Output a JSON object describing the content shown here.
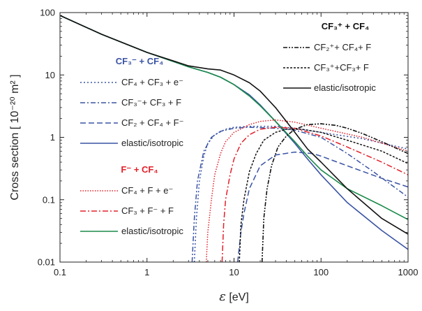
{
  "chart_data": {
    "type": "line",
    "x_scale": "log",
    "y_scale": "log",
    "xlim": [
      0.1,
      1000
    ],
    "ylim": [
      0.01,
      100
    ],
    "xlabel": "ε [eV]",
    "ylabel": "Cross section [ 10⁻²⁰ m² ]",
    "x_ticks": [
      "0.1",
      "1",
      "10",
      "100",
      "1000"
    ],
    "y_ticks": [
      "0.01",
      "0.1",
      "1",
      "10",
      "100"
    ],
    "legends": [
      {
        "title": "CF₃⁻ + CF₄",
        "title_color": "#3a53a4",
        "entries": [
          {
            "label": "CF₄ + CF₃ + e⁻",
            "color": "#3a53a4",
            "dash": "2,3"
          },
          {
            "label": "CF₃⁻+ CF₃ + F",
            "color": "#3a53a4",
            "dash": "7,3,2,3"
          },
          {
            "label": "CF₂ + CF₄ + F⁻",
            "color": "#3a53a4",
            "dash": "8,4"
          },
          {
            "label": "elastic/isotropic",
            "color": "#3a53a4",
            "dash": ""
          }
        ]
      },
      {
        "title": "F⁻ + CF₄",
        "title_color": "#e3202a",
        "entries": [
          {
            "label": "CF₄ + F + e⁻",
            "color": "#e3202a",
            "dash": "1.5,2"
          },
          {
            "label": "CF₃ + F⁻ + F",
            "color": "#e3202a",
            "dash": "8,3,2,3"
          },
          {
            "label": "elastic/isotropic",
            "color": "#1a8a4a",
            "dash": ""
          }
        ]
      },
      {
        "title": "CF₃⁺ + CF₄",
        "title_color": "#111111",
        "entries": [
          {
            "label": "CF₂⁺+ CF₄+ F",
            "color": "#111111",
            "dash": "6,2,2,2,2,2"
          },
          {
            "label": "CF₃⁺+CF₃+ F",
            "color": "#111111",
            "dash": "3,2"
          },
          {
            "label": "elastic/isotropic",
            "color": "#111111",
            "dash": ""
          }
        ]
      }
    ],
    "series": [
      {
        "name": "elastic/isotropic",
        "group": "CF₃⁻ + CF₄",
        "color": "#3a53a4",
        "dash": "",
        "width": 1.6,
        "points": [
          [
            0.1,
            90
          ],
          [
            0.3,
            45
          ],
          [
            1,
            23
          ],
          [
            3,
            13.5
          ],
          [
            5,
            11
          ],
          [
            7,
            9.2
          ],
          [
            10,
            7
          ],
          [
            15,
            4.8
          ],
          [
            20,
            3.3
          ],
          [
            30,
            1.8
          ],
          [
            50,
            0.8
          ],
          [
            70,
            0.45
          ],
          [
            100,
            0.25
          ],
          [
            200,
            0.09
          ],
          [
            500,
            0.032
          ],
          [
            1000,
            0.016
          ]
        ]
      },
      {
        "name": "CF₄ + CF₃ + e⁻",
        "group": "CF₃⁻ + CF₄",
        "color": "#3a53a4",
        "dash": "2,3",
        "width": 1.5,
        "points": [
          [
            3.5,
            0.01
          ],
          [
            3.7,
            0.05
          ],
          [
            4,
            0.2
          ],
          [
            4.5,
            0.5
          ],
          [
            5,
            0.8
          ],
          [
            6,
            1.1
          ],
          [
            8,
            1.35
          ],
          [
            10,
            1.45
          ],
          [
            15,
            1.5
          ],
          [
            30,
            1.5
          ],
          [
            50,
            1.4
          ],
          [
            100,
            1.2
          ],
          [
            300,
            0.95
          ],
          [
            1000,
            0.65
          ]
        ]
      },
      {
        "name": "CF₃⁻+ CF₃ + F",
        "group": "CF₃⁻ + CF₄",
        "color": "#3a53a4",
        "dash": "7,3,2,3",
        "width": 1.5,
        "points": [
          [
            3.3,
            0.01
          ],
          [
            3.5,
            0.05
          ],
          [
            3.8,
            0.2
          ],
          [
            4.5,
            0.6
          ],
          [
            5.5,
            1
          ],
          [
            7,
            1.25
          ],
          [
            10,
            1.4
          ],
          [
            15,
            1.45
          ],
          [
            30,
            1.4
          ],
          [
            50,
            1.3
          ],
          [
            100,
            1
          ],
          [
            200,
            0.55
          ],
          [
            400,
            0.28
          ],
          [
            1000,
            0.11
          ]
        ]
      },
      {
        "name": "CF₂ + CF₄ + F⁻",
        "group": "CF₃⁻ + CF₄",
        "color": "#3a53a4",
        "dash": "8,4",
        "width": 1.5,
        "points": [
          [
            11,
            0.01
          ],
          [
            12,
            0.03
          ],
          [
            13,
            0.06
          ],
          [
            15,
            0.15
          ],
          [
            20,
            0.35
          ],
          [
            30,
            0.52
          ],
          [
            50,
            0.58
          ],
          [
            80,
            0.55
          ],
          [
            100,
            0.5
          ],
          [
            200,
            0.35
          ],
          [
            500,
            0.22
          ],
          [
            1000,
            0.16
          ]
        ]
      },
      {
        "name": "elastic/isotropic",
        "group": "F⁻ + CF₄",
        "color": "#1a8a4a",
        "dash": "",
        "width": 1.6,
        "points": [
          [
            0.1,
            90
          ],
          [
            0.3,
            45
          ],
          [
            1,
            23
          ],
          [
            3,
            13.5
          ],
          [
            5,
            11
          ],
          [
            7,
            9.2
          ],
          [
            10,
            7
          ],
          [
            15,
            4.6
          ],
          [
            20,
            3.2
          ],
          [
            30,
            1.8
          ],
          [
            50,
            0.85
          ],
          [
            70,
            0.5
          ],
          [
            100,
            0.3
          ],
          [
            200,
            0.15
          ],
          [
            500,
            0.08
          ],
          [
            1000,
            0.048
          ]
        ]
      },
      {
        "name": "CF₄ + F + e⁻",
        "group": "F⁻ + CF₄",
        "color": "#e3202a",
        "dash": "1.5,2",
        "width": 1.5,
        "points": [
          [
            4.8,
            0.01
          ],
          [
            5,
            0.03
          ],
          [
            5.5,
            0.1
          ],
          [
            6,
            0.25
          ],
          [
            7,
            0.55
          ],
          [
            8,
            0.85
          ],
          [
            10,
            1.2
          ],
          [
            15,
            1.6
          ],
          [
            20,
            1.8
          ],
          [
            30,
            1.9
          ],
          [
            50,
            1.75
          ],
          [
            100,
            1.4
          ],
          [
            300,
            1
          ],
          [
            1000,
            0.6
          ]
        ]
      },
      {
        "name": "CF₃ + F⁻ + F",
        "group": "F⁻ + CF₄",
        "color": "#e3202a",
        "dash": "8,3,2,3",
        "width": 1.5,
        "points": [
          [
            7.3,
            0.01
          ],
          [
            7.6,
            0.04
          ],
          [
            8,
            0.1
          ],
          [
            9,
            0.25
          ],
          [
            10,
            0.45
          ],
          [
            12,
            0.8
          ],
          [
            15,
            1.1
          ],
          [
            20,
            1.35
          ],
          [
            30,
            1.45
          ],
          [
            50,
            1.4
          ],
          [
            100,
            1.05
          ],
          [
            200,
            0.7
          ],
          [
            500,
            0.4
          ],
          [
            1000,
            0.25
          ]
        ]
      },
      {
        "name": "elastic/isotropic",
        "group": "CF₃⁺ + CF₄",
        "color": "#111111",
        "dash": "",
        "width": 1.6,
        "points": [
          [
            0.1,
            90
          ],
          [
            0.3,
            45
          ],
          [
            1,
            23
          ],
          [
            3,
            14
          ],
          [
            5,
            12.5
          ],
          [
            7,
            12
          ],
          [
            10,
            10
          ],
          [
            15,
            7.5
          ],
          [
            20,
            5.5
          ],
          [
            30,
            3
          ],
          [
            50,
            1.2
          ],
          [
            70,
            0.65
          ],
          [
            100,
            0.4
          ],
          [
            200,
            0.15
          ],
          [
            500,
            0.05
          ],
          [
            1000,
            0.028
          ]
        ]
      },
      {
        "name": "CF₂⁺+ CF₄+ F",
        "group": "CF₃⁺ + CF₄",
        "color": "#111111",
        "dash": "6,2,2,2,2,2",
        "width": 1.6,
        "points": [
          [
            21,
            0.01
          ],
          [
            22,
            0.05
          ],
          [
            24,
            0.15
          ],
          [
            27,
            0.35
          ],
          [
            32,
            0.7
          ],
          [
            40,
            1.05
          ],
          [
            50,
            1.35
          ],
          [
            70,
            1.6
          ],
          [
            100,
            1.65
          ],
          [
            150,
            1.55
          ],
          [
            200,
            1.4
          ],
          [
            300,
            1.15
          ],
          [
            500,
            0.85
          ],
          [
            1000,
            0.55
          ]
        ]
      },
      {
        "name": "CF₃⁺+CF₃+ F",
        "group": "CF₃⁺ + CF₄",
        "color": "#111111",
        "dash": "3,2",
        "width": 1.5,
        "points": [
          [
            11.5,
            0.01
          ],
          [
            12,
            0.04
          ],
          [
            13,
            0.1
          ],
          [
            15,
            0.28
          ],
          [
            18,
            0.55
          ],
          [
            22,
            0.9
          ],
          [
            30,
            1.2
          ],
          [
            40,
            1.35
          ],
          [
            60,
            1.35
          ],
          [
            100,
            1.2
          ],
          [
            200,
            0.9
          ],
          [
            500,
            0.6
          ],
          [
            1000,
            0.38
          ]
        ]
      }
    ]
  }
}
